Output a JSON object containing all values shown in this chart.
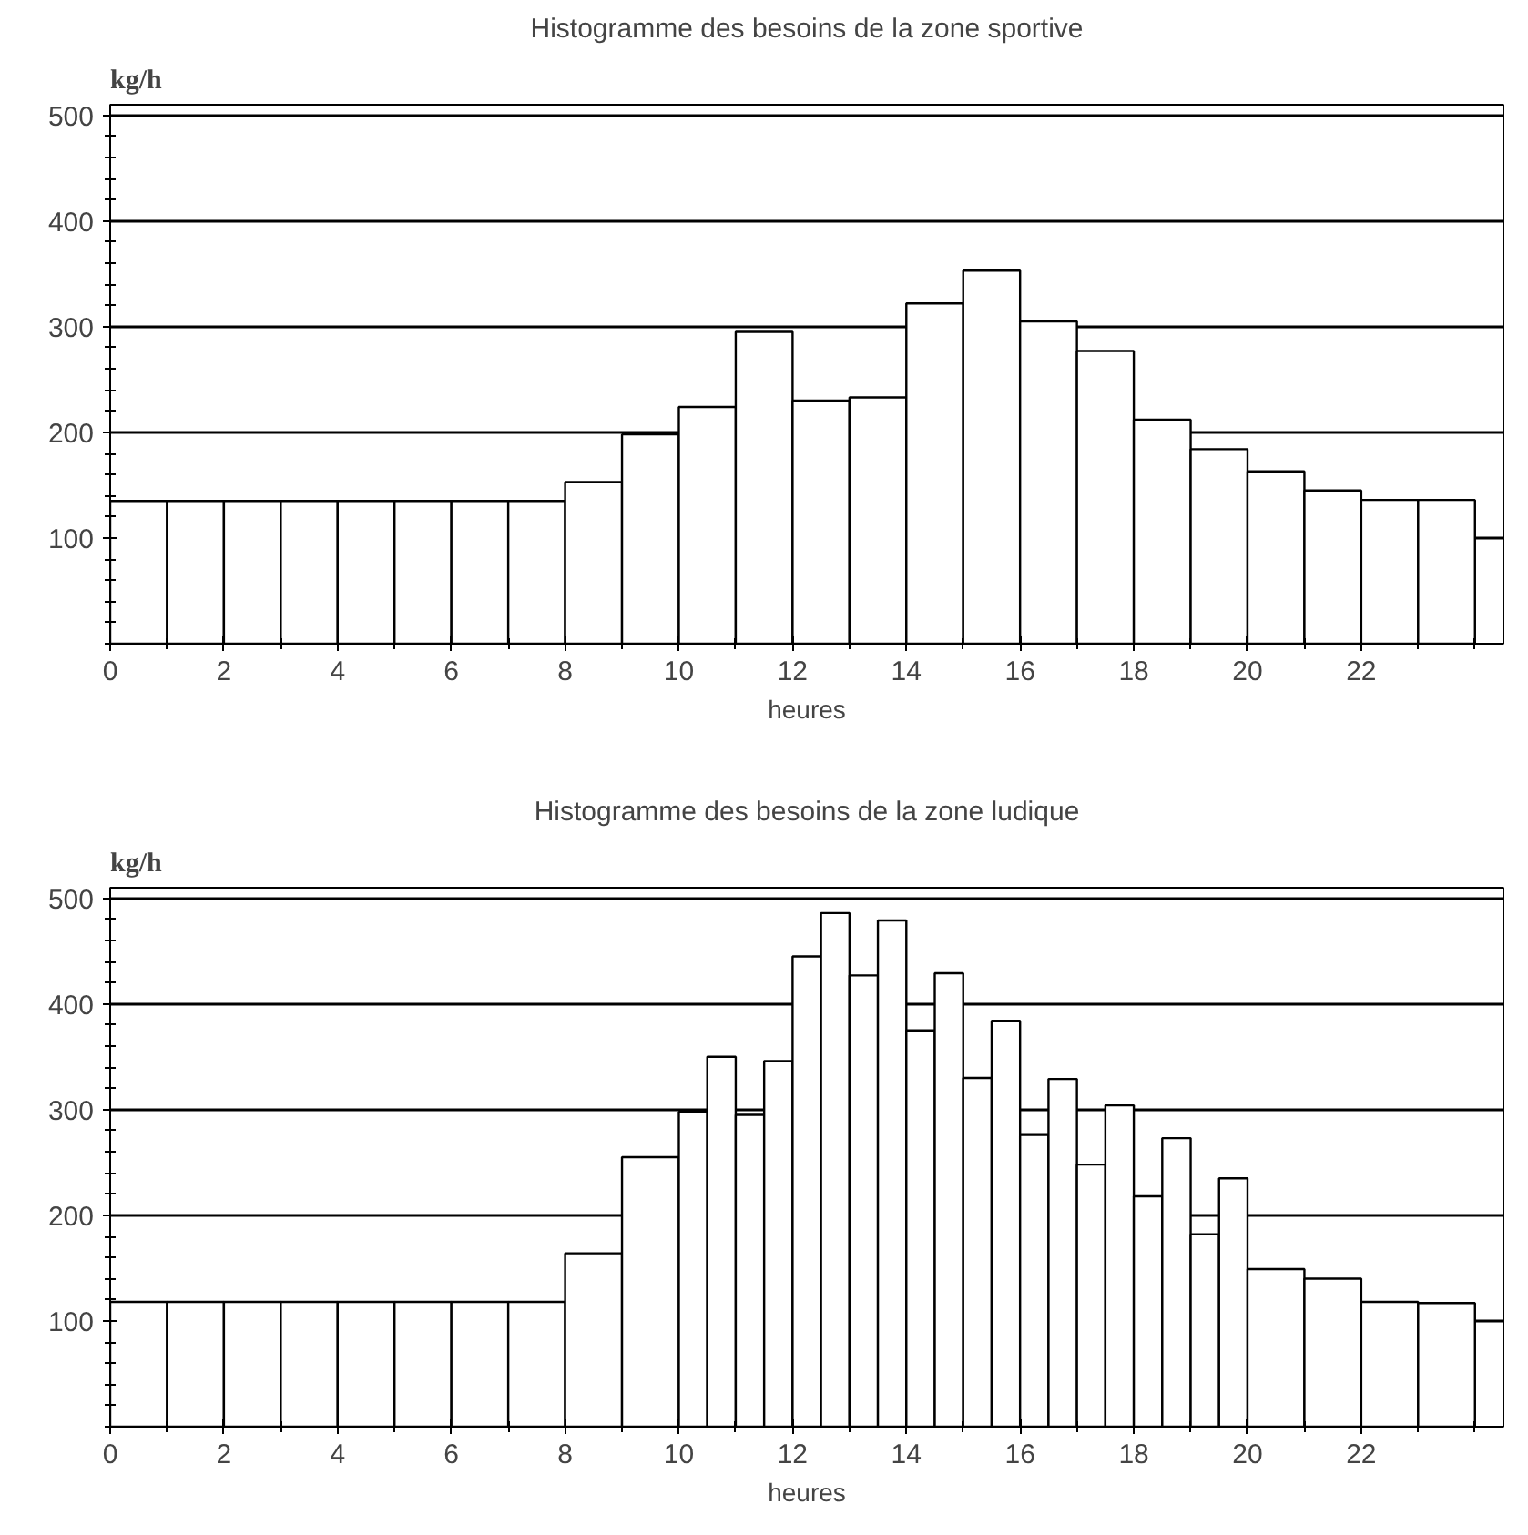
{
  "chart_data": [
    {
      "type": "histogram",
      "title": "Histogramme des besoins de la zone sportive",
      "xlabel": "heures",
      "ylabel": "kg/h",
      "bins": [
        0,
        1,
        2,
        3,
        4,
        5,
        6,
        7,
        8,
        9,
        10,
        11,
        12,
        13,
        14,
        15,
        16,
        17,
        18,
        19,
        20,
        21,
        22,
        23,
        24
      ],
      "values": [
        135,
        135,
        135,
        135,
        135,
        135,
        135,
        135,
        153,
        198,
        224,
        295,
        230,
        233,
        322,
        353,
        305,
        277,
        212,
        184,
        163,
        145,
        136,
        136
      ],
      "color": "#ffffff",
      "xlim": [
        0,
        24.5
      ],
      "ylim": [
        0,
        510
      ],
      "xticks": [
        0,
        2,
        4,
        6,
        8,
        10,
        12,
        14,
        16,
        18,
        20,
        22
      ],
      "yticks": [
        100,
        200,
        300,
        400,
        500
      ],
      "grid": "y"
    },
    {
      "type": "histogram",
      "title": "Histogramme des besoins de la zone ludique",
      "xlabel": "heures",
      "ylabel": "kg/h",
      "bins": [
        0,
        1,
        2,
        3,
        4,
        5,
        6,
        7,
        8,
        9,
        10,
        10.5,
        11,
        11.5,
        12,
        12.5,
        13,
        13.5,
        14,
        14.5,
        15,
        15.5,
        16,
        16.5,
        17,
        17.5,
        18,
        18.5,
        19,
        19.5,
        20,
        21,
        22,
        23,
        24
      ],
      "values": [
        118,
        118,
        118,
        118,
        118,
        118,
        118,
        118,
        164,
        255,
        298,
        350,
        295,
        346,
        445,
        486,
        427,
        479,
        375,
        429,
        330,
        384,
        276,
        329,
        248,
        304,
        218,
        273,
        182,
        235,
        149,
        140,
        118,
        117
      ],
      "color": "#ffffff",
      "xlim": [
        0,
        24.5
      ],
      "ylim": [
        0,
        510
      ],
      "xticks": [
        0,
        2,
        4,
        6,
        8,
        10,
        12,
        14,
        16,
        18,
        20,
        22
      ],
      "yticks": [
        100,
        200,
        300,
        400,
        500
      ],
      "grid": "y"
    }
  ]
}
